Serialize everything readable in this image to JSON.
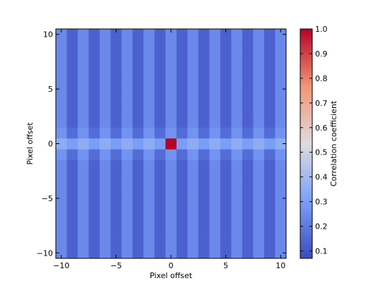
{
  "chart_data": {
    "type": "heatmap",
    "title": "",
    "xlabel": "Pixel offset",
    "ylabel": "Pixel offset",
    "colorbar_label": "Correlation coefficient",
    "colormap": "coolwarm",
    "x_range": [
      -10.5,
      10.5
    ],
    "y_range": [
      -10.5,
      10.5
    ],
    "x_ticks": [
      -10,
      -5,
      0,
      5,
      10
    ],
    "x_tick_labels": [
      "−10",
      "−5",
      "0",
      "5",
      "10"
    ],
    "y_ticks": [
      -10,
      -5,
      0,
      5,
      10
    ],
    "y_tick_labels": [
      "−10",
      "−5",
      "0",
      "5",
      "10"
    ],
    "color_range": [
      0.07,
      1.0
    ],
    "colorbar_ticks": [
      0.1,
      0.2,
      0.3,
      0.4,
      0.5,
      0.6,
      0.7,
      0.8,
      0.9,
      1.0
    ],
    "colorbar_tick_labels": [
      "0.1",
      "0.2",
      "0.3",
      "0.4",
      "0.5",
      "0.6",
      "0.7",
      "0.8",
      "0.9",
      "1.0"
    ],
    "grid": false,
    "column_values_by_x_offset": {
      "x": [
        -10,
        -9,
        -8,
        -7,
        -6,
        -5,
        -4,
        -3,
        -2,
        -1,
        0,
        1,
        2,
        3,
        4,
        5,
        6,
        7,
        8,
        9,
        10
      ],
      "values": [
        0.24,
        0.13,
        0.24,
        0.13,
        0.24,
        0.13,
        0.24,
        0.13,
        0.24,
        0.13,
        0.24,
        0.13,
        0.24,
        0.13,
        0.24,
        0.13,
        0.24,
        0.13,
        0.24,
        0.13,
        0.24
      ]
    },
    "row_zero_values": [
      0.35,
      0.3,
      0.35,
      0.3,
      0.35,
      0.3,
      0.35,
      0.3,
      0.35,
      0.3,
      1.0,
      0.3,
      0.35,
      0.3,
      0.35,
      0.3,
      0.35,
      0.3,
      0.35,
      0.3,
      0.35
    ],
    "row_adjacent_boost": 0.03,
    "peak": {
      "x": 0,
      "y": 0,
      "value": 1.0
    }
  }
}
